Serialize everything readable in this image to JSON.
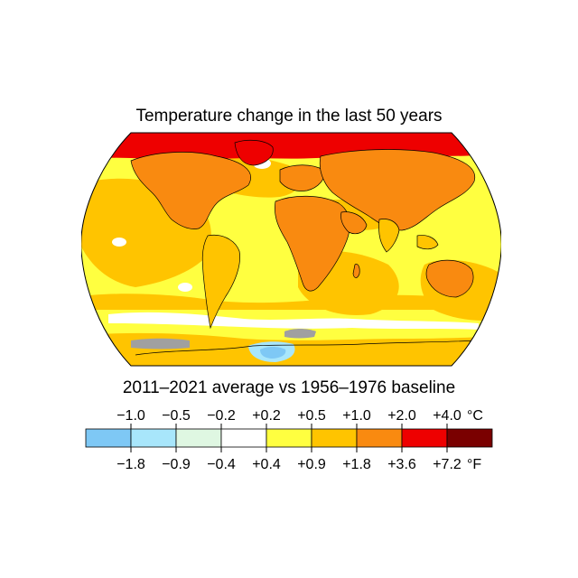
{
  "title": "Temperature change in the last 50 years",
  "subtitle": "2011–2021 average vs 1956–1976 baseline",
  "legend": {
    "celsius_unit": "°C",
    "fahrenheit_unit": "°F",
    "celsius_ticks": [
      "−1.0",
      "−0.5",
      "−0.2",
      "+0.2",
      "+0.5",
      "+1.0",
      "+2.0",
      "+4.0"
    ],
    "fahrenheit_ticks": [
      "−1.8",
      "−0.9",
      "−0.4",
      "+0.4",
      "+0.9",
      "+1.8",
      "+3.6",
      "+7.2"
    ],
    "bins": [
      {
        "color": "#7ec8f5"
      },
      {
        "color": "#a8e6fb"
      },
      {
        "color": "#dff7e2"
      },
      {
        "color": "#ffffff"
      },
      {
        "color": "#ffff40"
      },
      {
        "color": "#ffc400"
      },
      {
        "color": "#f98a10"
      },
      {
        "color": "#ee0000"
      },
      {
        "color": "#7a0000"
      }
    ]
  },
  "colors": {
    "no_data": "#a0a0a0",
    "land_outline": "#000000"
  }
}
